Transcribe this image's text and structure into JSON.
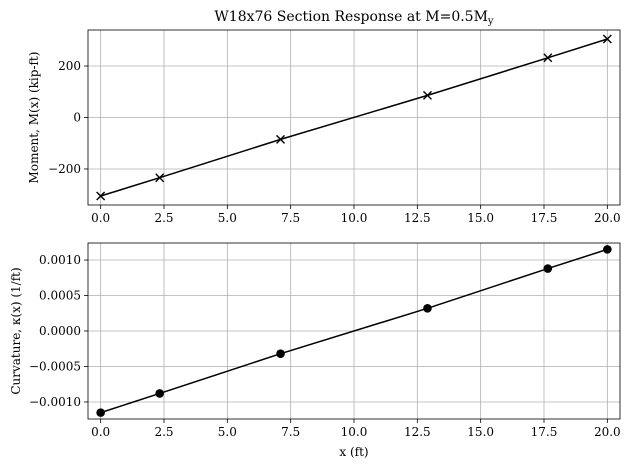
{
  "chart_data": [
    {
      "type": "line",
      "title": "W18x76 Section Response at M=0.5M",
      "title_sub": "y",
      "xlabel": "",
      "ylabel": "Moment, M(x) (kip-ft)",
      "xlim": [
        -0.5,
        20.5
      ],
      "ylim": [
        -340,
        340
      ],
      "xticks": [
        0.0,
        2.5,
        5.0,
        7.5,
        10.0,
        12.5,
        15.0,
        17.5,
        20.0
      ],
      "xtick_labels": [
        "0.0",
        "2.5",
        "5.0",
        "7.5",
        "10.0",
        "12.5",
        "15.0",
        "17.5",
        "20.0"
      ],
      "yticks": [
        -200,
        0,
        200
      ],
      "ytick_labels": [
        "−200",
        "0",
        "200"
      ],
      "grid": true,
      "marker": "x",
      "series": [
        {
          "x": [
            0.0,
            2.33,
            7.1,
            12.9,
            17.65,
            20.0
          ],
          "y": [
            -305,
            -234,
            -85,
            86,
            232,
            305
          ]
        }
      ]
    },
    {
      "type": "line",
      "title": "",
      "xlabel": "x (ft)",
      "ylabel": "Curvature, κ(x) (1/ft)",
      "xlim": [
        -0.5,
        20.5
      ],
      "ylim": [
        -0.00124,
        0.00124
      ],
      "xticks": [
        0.0,
        2.5,
        5.0,
        7.5,
        10.0,
        12.5,
        15.0,
        17.5,
        20.0
      ],
      "xtick_labels": [
        "0.0",
        "2.5",
        "5.0",
        "7.5",
        "10.0",
        "12.5",
        "15.0",
        "17.5",
        "20.0"
      ],
      "yticks": [
        -0.001,
        -0.0005,
        0.0,
        0.0005,
        0.001
      ],
      "ytick_labels": [
        "−0.0010",
        "−0.0005",
        "0.0000",
        "0.0005",
        "0.0010"
      ],
      "grid": true,
      "marker": "o",
      "series": [
        {
          "x": [
            0.0,
            2.33,
            7.1,
            12.9,
            17.65,
            20.0
          ],
          "y": [
            -0.00115,
            -0.00088,
            -0.00032,
            0.00032,
            0.00088,
            0.00115
          ]
        }
      ]
    }
  ]
}
